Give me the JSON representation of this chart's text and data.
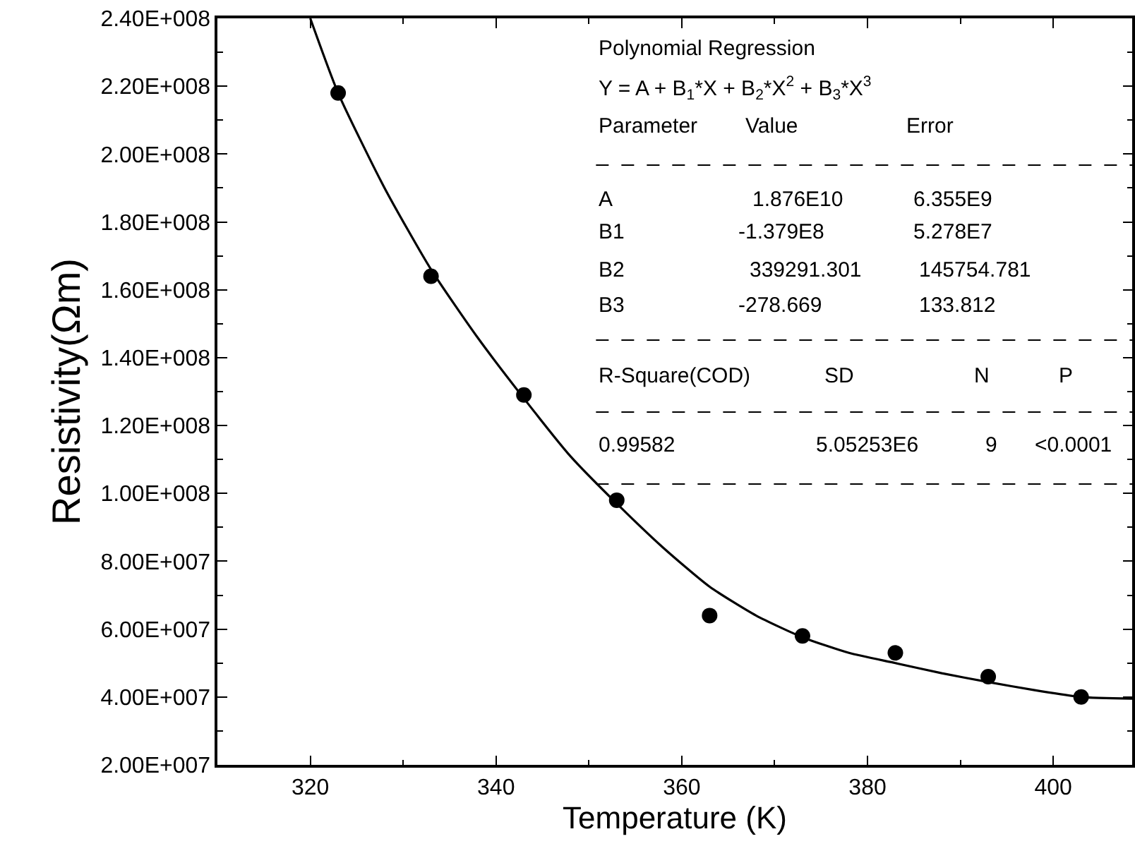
{
  "chart_data": {
    "type": "scatter",
    "xlabel": "Temperature (K)",
    "ylabel": "Resistivity(Ωm)",
    "xlim": [
      310,
      408.5
    ],
    "xticks": [
      320,
      340,
      360,
      380,
      400
    ],
    "ylim": [
      20000000,
      240000000
    ],
    "yticks": [
      {
        "value": 20000000,
        "label": "2.00E+007"
      },
      {
        "value": 40000000,
        "label": "4.00E+007"
      },
      {
        "value": 60000000,
        "label": "6.00E+007"
      },
      {
        "value": 80000000,
        "label": "8.00E+007"
      },
      {
        "value": 100000000,
        "label": "1.00E+008"
      },
      {
        "value": 120000000,
        "label": "1.20E+008"
      },
      {
        "value": 140000000,
        "label": "1.40E+008"
      },
      {
        "value": 160000000,
        "label": "1.60E+008"
      },
      {
        "value": 180000000,
        "label": "1.80E+008"
      },
      {
        "value": 200000000,
        "label": "2.00E+008"
      },
      {
        "value": 220000000,
        "label": "2.20E+008"
      },
      {
        "value": 240000000,
        "label": "2.40E+008"
      }
    ],
    "legend": false,
    "marker": "circle",
    "series": [
      {
        "color": "#000000",
        "x": [
          323,
          333,
          343,
          353,
          363,
          373,
          383,
          393,
          403
        ],
        "values": [
          218000000,
          164000000,
          129000000,
          98000000,
          64000000,
          58000000,
          53000000,
          46000000,
          40000000
        ]
      },
      {
        "type": "line",
        "color": "#000000",
        "marker": "none",
        "line_style": "solid",
        "x": [
          320,
          323,
          328,
          333,
          338,
          343,
          348,
          353,
          358,
          363,
          368,
          373,
          378,
          383,
          388,
          393,
          398,
          403,
          408.5
        ],
        "values": [
          240000000,
          218000000,
          190000000,
          166000000,
          146000000,
          128000000,
          111000000,
          97000000,
          84000000,
          72500000,
          64000000,
          57600000,
          53000000,
          50000000,
          47000000,
          44400000,
          42000000,
          40000000,
          39500000
        ]
      }
    ],
    "annotations": [
      "Polynomial Regression",
      "Y = A + B$_{1}$*X + B$_{2}$*X$^{2}$ + B$_{3}$*X$^{3}$",
      "Parameter",
      "Value",
      "Error",
      "A",
      "1.876E10",
      "6.355E9",
      "B1",
      "-1.379E8",
      "5.278E7",
      "B2",
      "339291.301",
      "145754.781",
      "B3",
      "-278.669",
      "133.812",
      "R-Square(COD)",
      "SD",
      "N",
      "P",
      "0.99582",
      "5.05253E6",
      "9",
      "<0.0001"
    ]
  }
}
